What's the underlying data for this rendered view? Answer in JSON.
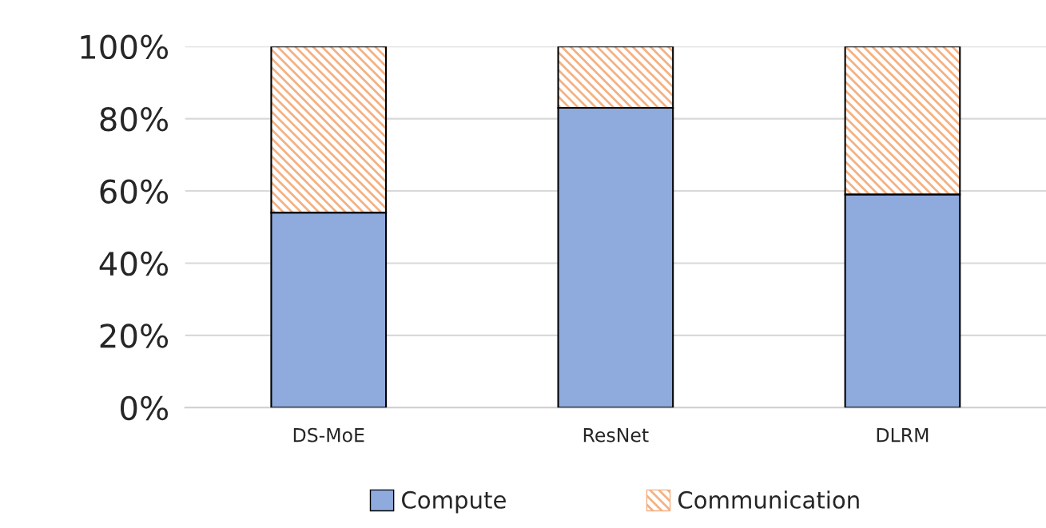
{
  "chart_data": {
    "type": "bar",
    "stacked": true,
    "categories": [
      "DS-MoE",
      "ResNet",
      "DLRM"
    ],
    "series": [
      {
        "name": "Compute",
        "color": "#8faadc",
        "values": [
          54,
          83,
          59
        ]
      },
      {
        "name": "Communication",
        "color": "#f4b183",
        "values": [
          46,
          17,
          41
        ]
      }
    ],
    "ylim": [
      0,
      100
    ],
    "yticks": [
      {
        "value": 0,
        "label": "0%"
      },
      {
        "value": 20,
        "label": "20%"
      },
      {
        "value": 40,
        "label": "40%"
      },
      {
        "value": 60,
        "label": "60%"
      },
      {
        "value": 80,
        "label": "80%"
      },
      {
        "value": 100,
        "label": "100%"
      }
    ],
    "grid": "y",
    "legend": "bottom"
  }
}
